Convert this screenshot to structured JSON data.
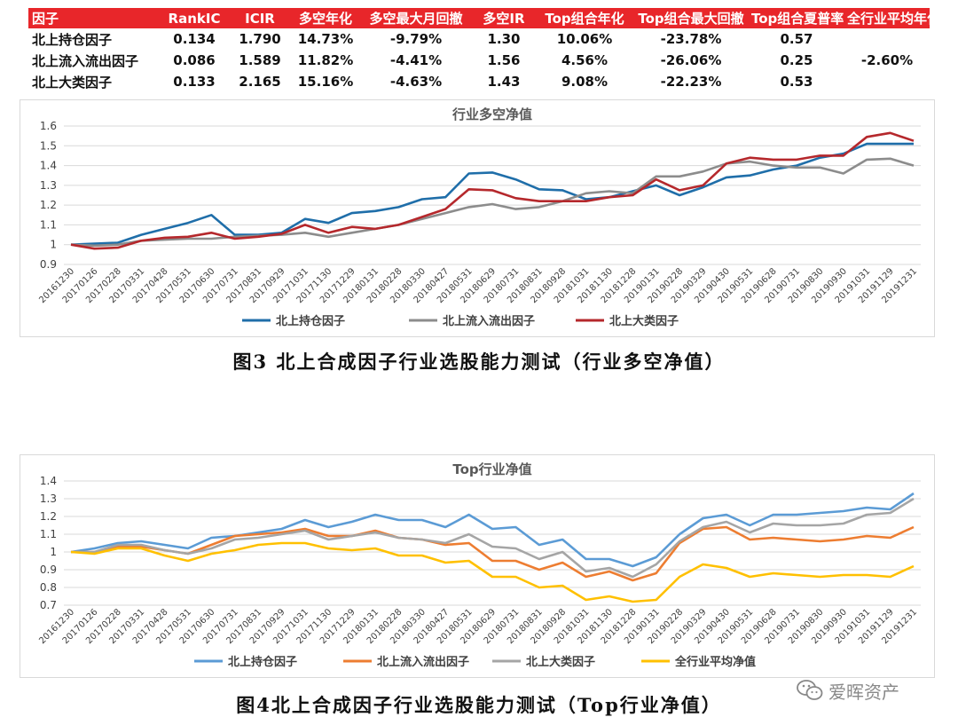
{
  "stats_table": {
    "headers": [
      "因子",
      "RankIC",
      "ICIR",
      "多空年化",
      "多空最大月回撤",
      "多空IR",
      "Top组合年化",
      "Top组合最大回撤",
      "Top组合夏普率",
      "全行业平均年化"
    ],
    "rows": [
      [
        "北上持仓因子",
        "0.134",
        "1.790",
        "14.73%",
        "-9.79%",
        "1.30",
        "10.06%",
        "-23.78%",
        "0.57"
      ],
      [
        "北上流入流出因子",
        "0.086",
        "1.589",
        "11.82%",
        "-4.41%",
        "1.56",
        "4.56%",
        "-26.06%",
        "0.25"
      ],
      [
        "北上大类因子",
        "0.133",
        "2.165",
        "15.16%",
        "-4.63%",
        "1.43",
        "9.08%",
        "-22.23%",
        "0.53"
      ]
    ],
    "merged_last_value": "-2.60%"
  },
  "captions": {
    "fig3": "图3 北上合成因子行业选股能力测试（行业多空净值）",
    "fig4": "图4北上合成因子行业选股能力测试（Top行业净值）"
  },
  "watermark": "爱晖资产",
  "chart_data": [
    {
      "type": "line",
      "title": "行业多空净值",
      "ylim": [
        0.9,
        1.6
      ],
      "yticks": [
        0.9,
        1,
        1.1,
        1.2,
        1.3,
        1.4,
        1.5,
        1.6
      ],
      "grid": true,
      "legend_position": "bottom",
      "x_labels": [
        "20161230",
        "20170126",
        "20170228",
        "20170331",
        "20170428",
        "20170531",
        "20170630",
        "20170731",
        "20170831",
        "20170929",
        "20171031",
        "20171130",
        "20171229",
        "20180131",
        "20180228",
        "20180330",
        "20180427",
        "20180531",
        "20180629",
        "20180731",
        "20180831",
        "20180928",
        "20181031",
        "20181130",
        "20181228",
        "20190131",
        "20190228",
        "20190329",
        "20190430",
        "20190531",
        "20190628",
        "20190731",
        "20190830",
        "20190930",
        "20191031",
        "20191129",
        "20191231"
      ],
      "series": [
        {
          "name": "北上持仓因子",
          "color": "#1f6ea9",
          "values": [
            1.0,
            1.005,
            1.01,
            1.05,
            1.08,
            1.11,
            1.15,
            1.05,
            1.05,
            1.06,
            1.13,
            1.11,
            1.16,
            1.17,
            1.19,
            1.23,
            1.24,
            1.36,
            1.365,
            1.33,
            1.28,
            1.275,
            1.23,
            1.24,
            1.27,
            1.3,
            1.25,
            1.29,
            1.34,
            1.35,
            1.38,
            1.4,
            1.44,
            1.46,
            1.51,
            1.51,
            1.51
          ]
        },
        {
          "name": "北上流入流出因子",
          "color": "#8c8c8c",
          "values": [
            1.0,
            0.995,
            1.0,
            1.02,
            1.025,
            1.03,
            1.03,
            1.04,
            1.045,
            1.05,
            1.06,
            1.04,
            1.06,
            1.08,
            1.1,
            1.13,
            1.16,
            1.19,
            1.205,
            1.18,
            1.19,
            1.22,
            1.26,
            1.27,
            1.26,
            1.345,
            1.345,
            1.37,
            1.41,
            1.42,
            1.4,
            1.39,
            1.39,
            1.36,
            1.43,
            1.435,
            1.4
          ]
        },
        {
          "name": "北上大类因子",
          "color": "#b5282c",
          "values": [
            1.0,
            0.98,
            0.985,
            1.02,
            1.035,
            1.04,
            1.06,
            1.03,
            1.04,
            1.055,
            1.1,
            1.06,
            1.09,
            1.08,
            1.1,
            1.14,
            1.18,
            1.28,
            1.275,
            1.235,
            1.22,
            1.22,
            1.22,
            1.24,
            1.25,
            1.33,
            1.275,
            1.3,
            1.41,
            1.44,
            1.43,
            1.43,
            1.45,
            1.45,
            1.545,
            1.565,
            1.525
          ]
        }
      ]
    },
    {
      "type": "line",
      "title": "Top行业净值",
      "ylim": [
        0.7,
        1.4
      ],
      "yticks": [
        0.7,
        0.8,
        0.9,
        1,
        1.1,
        1.2,
        1.3,
        1.4
      ],
      "grid": true,
      "legend_position": "bottom",
      "x_labels": [
        "20161230",
        "20170126",
        "20170228",
        "20170331",
        "20170428",
        "20170531",
        "20170630",
        "20170731",
        "20170831",
        "20170929",
        "20171031",
        "20171130",
        "20171229",
        "20180131",
        "20180228",
        "20180330",
        "20180427",
        "20180531",
        "20180629",
        "20180731",
        "20180831",
        "20180928",
        "20181031",
        "20181130",
        "20181228",
        "20190131",
        "20190228",
        "20190329",
        "20190430",
        "20190531",
        "20190628",
        "20190731",
        "20190830",
        "20190930",
        "20191031",
        "20191129",
        "20191231"
      ],
      "series": [
        {
          "name": "北上持仓因子",
          "color": "#5b9bd5",
          "values": [
            1.0,
            1.02,
            1.05,
            1.06,
            1.04,
            1.02,
            1.08,
            1.09,
            1.11,
            1.13,
            1.18,
            1.14,
            1.17,
            1.21,
            1.18,
            1.18,
            1.14,
            1.21,
            1.13,
            1.14,
            1.04,
            1.07,
            0.96,
            0.96,
            0.92,
            0.97,
            1.1,
            1.19,
            1.21,
            1.15,
            1.21,
            1.21,
            1.22,
            1.23,
            1.25,
            1.24,
            1.33
          ]
        },
        {
          "name": "北上流入流出因子",
          "color": "#ed7d31",
          "values": [
            1.0,
            1.0,
            1.03,
            1.03,
            1.01,
            0.99,
            1.04,
            1.09,
            1.1,
            1.11,
            1.13,
            1.09,
            1.09,
            1.12,
            1.08,
            1.07,
            1.04,
            1.05,
            0.95,
            0.95,
            0.9,
            0.94,
            0.86,
            0.89,
            0.84,
            0.88,
            1.05,
            1.13,
            1.14,
            1.07,
            1.08,
            1.07,
            1.06,
            1.07,
            1.09,
            1.08,
            1.14
          ]
        },
        {
          "name": "北上大类因子",
          "color": "#a5a5a5",
          "values": [
            1.0,
            1.0,
            1.04,
            1.04,
            1.01,
            0.99,
            1.02,
            1.07,
            1.08,
            1.1,
            1.12,
            1.07,
            1.09,
            1.11,
            1.08,
            1.07,
            1.05,
            1.1,
            1.03,
            1.02,
            0.96,
            1.0,
            0.89,
            0.91,
            0.86,
            0.93,
            1.06,
            1.14,
            1.17,
            1.11,
            1.16,
            1.15,
            1.15,
            1.16,
            1.21,
            1.22,
            1.3
          ]
        },
        {
          "name": "全行业平均净值",
          "color": "#ffc000",
          "values": [
            1.0,
            0.99,
            1.02,
            1.02,
            0.98,
            0.95,
            0.99,
            1.01,
            1.04,
            1.05,
            1.05,
            1.02,
            1.01,
            1.02,
            0.98,
            0.98,
            0.94,
            0.95,
            0.86,
            0.86,
            0.8,
            0.81,
            0.73,
            0.75,
            0.72,
            0.73,
            0.86,
            0.93,
            0.91,
            0.86,
            0.88,
            0.87,
            0.86,
            0.87,
            0.87,
            0.86,
            0.92
          ]
        }
      ]
    }
  ]
}
